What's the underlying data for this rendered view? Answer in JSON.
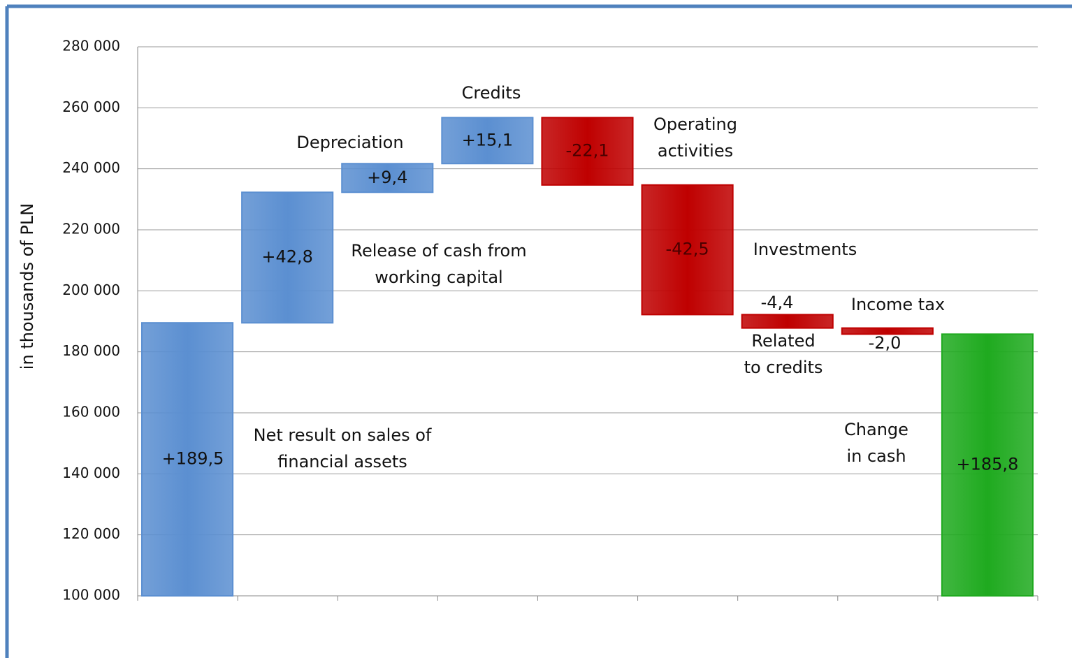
{
  "chart_data": {
    "type": "waterfall",
    "y_label": "in thousands of PLN",
    "categories": [
      [
        "Net result on sales of",
        "financial assets"
      ],
      [
        "Release of cash from",
        "working capital"
      ],
      [
        "Depreciation"
      ],
      [
        "Credits"
      ],
      [
        "Operating",
        "activities"
      ],
      [
        "Investments"
      ],
      [
        "Related",
        "to credits"
      ],
      [
        "Income tax"
      ],
      [
        "Change",
        "in cash"
      ]
    ],
    "values": [
      189500,
      42800,
      9400,
      15100,
      -22100,
      -42500,
      -4400,
      -2000,
      185800
    ],
    "value_labels": [
      "+189,5",
      "+42,8",
      "+9,4",
      "+15,1",
      "-22,1",
      "-42,5",
      "-4,4",
      "-2,0",
      "+185,8"
    ],
    "measure": [
      "absolute",
      "relative",
      "relative",
      "relative",
      "relative",
      "relative",
      "relative",
      "relative",
      "total"
    ],
    "colors": [
      "#5b8fd1",
      "#5b8fd1",
      "#5b8fd1",
      "#5b8fd1",
      "#bf0000",
      "#bf0000",
      "#bf0000",
      "#bf0000",
      "#1faa1f"
    ],
    "ylim": [
      100000,
      280000
    ],
    "yticks": [
      {
        "value": 100000,
        "label": "100 000"
      },
      {
        "value": 120000,
        "label": "120 000"
      },
      {
        "value": 140000,
        "label": "140 000"
      },
      {
        "value": 160000,
        "label": "160 000"
      },
      {
        "value": 180000,
        "label": "180 000"
      },
      {
        "value": 200000,
        "label": "200 000"
      },
      {
        "value": 220000,
        "label": "220 000"
      },
      {
        "value": 240000,
        "label": "240 000"
      },
      {
        "value": 260000,
        "label": "260 000"
      },
      {
        "value": 280000,
        "label": "280 000"
      }
    ],
    "grid": true
  }
}
